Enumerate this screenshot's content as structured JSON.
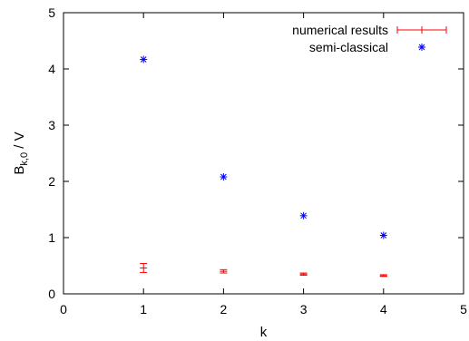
{
  "chart_data": {
    "type": "scatter",
    "xlabel": "k",
    "ylabel": {
      "main": "B",
      "sub": "k,0",
      "suffix": " / V"
    },
    "xlim": [
      0,
      5
    ],
    "ylim": [
      0,
      5
    ],
    "x_ticks": [
      0,
      1,
      2,
      3,
      4,
      5
    ],
    "y_ticks": [
      0,
      1,
      2,
      3,
      4,
      5
    ],
    "grid": false,
    "legend_position": "top-right",
    "series": [
      {
        "name": "numerical results",
        "style": "errorbars",
        "color": "#ff0000",
        "x": [
          1,
          2,
          3,
          4
        ],
        "y": [
          0.46,
          0.4,
          0.35,
          0.32
        ],
        "err_low": [
          0.38,
          0.37,
          0.33,
          0.31
        ],
        "err_high": [
          0.54,
          0.43,
          0.37,
          0.34
        ]
      },
      {
        "name": "semi-classical",
        "style": "points",
        "marker": "asterisk",
        "color": "#0000ff",
        "x": [
          1,
          2,
          3,
          4
        ],
        "y": [
          4.17,
          2.08,
          1.39,
          1.04
        ]
      }
    ]
  }
}
